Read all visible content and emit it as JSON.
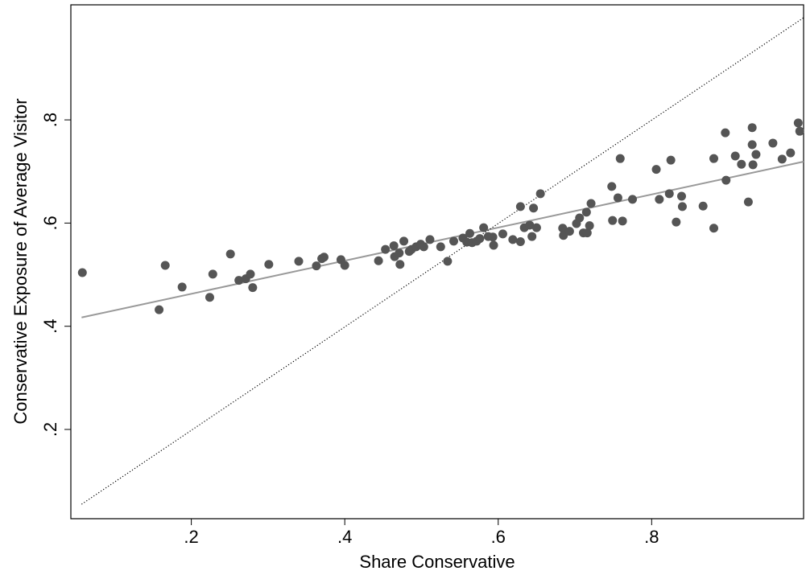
{
  "chart_data": {
    "type": "scatter",
    "xlabel": "Share Conservative",
    "ylabel": "Conservative Exposure of Average Visitor",
    "xlim": [
      0.043,
      0.998
    ],
    "ylim": [
      0.027,
      1.023
    ],
    "xticks": [
      {
        "value": 0.2,
        "label": ".2"
      },
      {
        "value": 0.4,
        "label": ".4"
      },
      {
        "value": 0.6,
        "label": ".6"
      },
      {
        "value": 0.8,
        "label": ".8"
      }
    ],
    "yticks": [
      {
        "value": 0.2,
        "label": ".2"
      },
      {
        "value": 0.4,
        "label": ".4"
      },
      {
        "value": 0.6,
        "label": ".6"
      },
      {
        "value": 0.8,
        "label": ".8"
      }
    ],
    "series": [
      {
        "type": "scatter",
        "color": "#555555",
        "x": [
          0.058,
          0.158,
          0.166,
          0.188,
          0.224,
          0.228,
          0.251,
          0.262,
          0.271,
          0.277,
          0.28,
          0.301,
          0.34,
          0.363,
          0.37,
          0.373,
          0.395,
          0.4,
          0.444,
          0.453,
          0.464,
          0.465,
          0.471,
          0.472,
          0.477,
          0.484,
          0.487,
          0.493,
          0.499,
          0.503,
          0.511,
          0.525,
          0.534,
          0.542,
          0.554,
          0.559,
          0.563,
          0.566,
          0.572,
          0.576,
          0.581,
          0.587,
          0.593,
          0.594,
          0.606,
          0.619,
          0.629,
          0.629,
          0.634,
          0.641,
          0.644,
          0.646,
          0.65,
          0.655,
          0.684,
          0.685,
          0.693,
          0.702,
          0.706,
          0.711,
          0.715,
          0.716,
          0.719,
          0.721,
          0.748,
          0.749,
          0.756,
          0.759,
          0.762,
          0.775,
          0.806,
          0.81,
          0.823,
          0.825,
          0.832,
          0.839,
          0.84,
          0.867,
          0.881,
          0.881,
          0.896,
          0.897,
          0.909,
          0.917,
          0.926,
          0.931,
          0.931,
          0.932,
          0.936,
          0.958,
          0.97,
          0.981,
          0.991,
          0.993
        ],
        "values": [
          0.504,
          0.432,
          0.518,
          0.476,
          0.456,
          0.501,
          0.54,
          0.489,
          0.492,
          0.501,
          0.475,
          0.52,
          0.526,
          0.517,
          0.531,
          0.534,
          0.529,
          0.518,
          0.527,
          0.549,
          0.556,
          0.535,
          0.542,
          0.52,
          0.565,
          0.545,
          0.549,
          0.554,
          0.559,
          0.554,
          0.568,
          0.554,
          0.526,
          0.565,
          0.571,
          0.563,
          0.58,
          0.562,
          0.565,
          0.57,
          0.591,
          0.574,
          0.573,
          0.557,
          0.579,
          0.568,
          0.632,
          0.564,
          0.591,
          0.596,
          0.574,
          0.629,
          0.591,
          0.657,
          0.59,
          0.576,
          0.584,
          0.599,
          0.61,
          0.581,
          0.621,
          0.581,
          0.595,
          0.638,
          0.671,
          0.605,
          0.649,
          0.725,
          0.604,
          0.646,
          0.704,
          0.646,
          0.657,
          0.722,
          0.602,
          0.652,
          0.632,
          0.633,
          0.725,
          0.59,
          0.775,
          0.683,
          0.73,
          0.714,
          0.641,
          0.785,
          0.752,
          0.713,
          0.733,
          0.755,
          0.724,
          0.736,
          0.794,
          0.778
        ]
      },
      {
        "type": "line",
        "color": "#999999",
        "style": "solid",
        "x": [
          0.057,
          0.998
        ],
        "values": [
          0.417,
          0.719
        ]
      },
      {
        "type": "line",
        "color": "#000000",
        "style": "dotted",
        "x": [
          0.057,
          0.998
        ],
        "values": [
          0.055,
          0.998
        ]
      }
    ]
  }
}
